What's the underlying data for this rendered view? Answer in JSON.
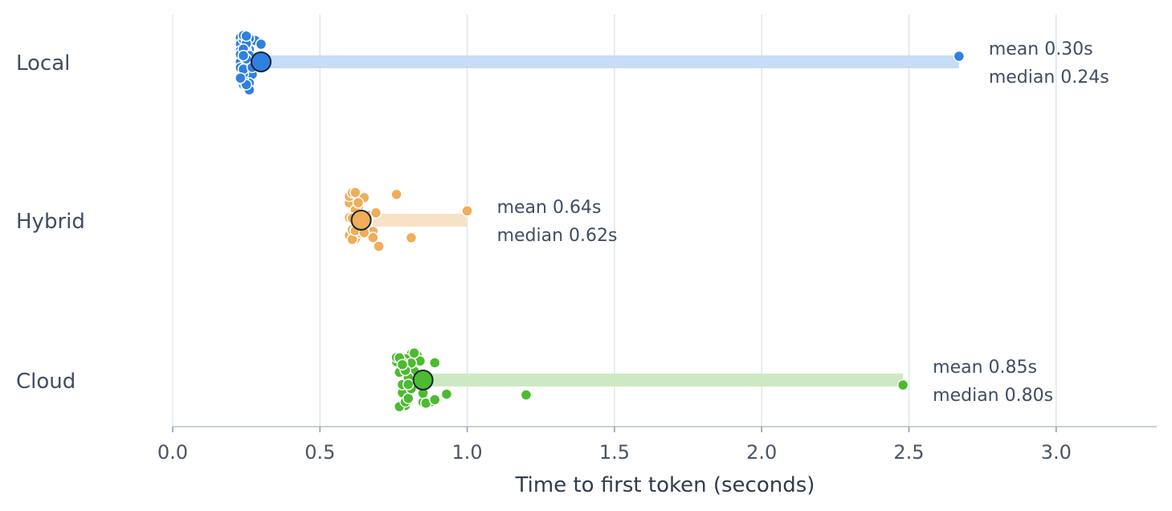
{
  "chart_data": {
    "type": "scatter",
    "xlabel": "Time to first token (seconds)",
    "xlim": [
      0,
      3.33
    ],
    "xticks": [
      0.0,
      0.5,
      1.0,
      1.5,
      2.0,
      2.5,
      3.0
    ],
    "xtick_labels": [
      "0.0",
      "0.5",
      "1.0",
      "1.5",
      "2.0",
      "2.5",
      "3.0"
    ],
    "grid": "vertical",
    "series": [
      {
        "name": "Local",
        "color": "#2f80e0",
        "bar_color": "#c7dcf5",
        "mean": 0.3,
        "median": 0.24,
        "max": 2.67,
        "mean_label": "mean 0.30s",
        "median_label": "median 0.24s",
        "points": [
          0.24,
          0.25,
          0.23,
          0.26,
          0.24,
          0.27,
          0.25,
          0.23,
          0.24,
          0.26,
          0.28,
          0.25,
          0.24,
          0.23,
          0.25,
          0.26,
          0.24,
          0.27,
          0.23,
          0.25,
          0.24,
          0.26,
          0.25,
          0.24,
          0.28,
          0.3,
          0.27,
          0.25,
          0.24,
          0.23,
          0.26,
          0.25,
          0.24,
          0.25,
          0.26,
          0.23,
          0.24,
          0.27,
          0.25,
          0.24,
          0.26,
          0.25,
          0.24,
          0.23,
          2.67
        ]
      },
      {
        "name": "Hybrid",
        "color": "#f0ad5a",
        "bar_color": "#f8e2c6",
        "mean": 0.64,
        "median": 0.62,
        "max": 1.0,
        "mean_label": "mean 0.64s",
        "median_label": "median 0.62s",
        "points": [
          0.6,
          0.62,
          0.64,
          0.61,
          0.63,
          0.65,
          0.6,
          0.62,
          0.66,
          0.61,
          0.63,
          0.67,
          0.62,
          0.64,
          0.6,
          0.65,
          0.61,
          0.63,
          0.68,
          0.62,
          0.6,
          0.64,
          0.66,
          0.61,
          0.63,
          0.62,
          0.65,
          0.6,
          0.64,
          0.7,
          0.69,
          0.76,
          0.81,
          0.68,
          0.62,
          0.61,
          0.63,
          0.65,
          1.0
        ]
      },
      {
        "name": "Cloud",
        "color": "#4cbb2f",
        "bar_color": "#cde9c3",
        "mean": 0.85,
        "median": 0.8,
        "max": 2.48,
        "mean_label": "mean 0.85s",
        "median_label": "median 0.80s",
        "points": [
          0.77,
          0.79,
          0.81,
          0.78,
          0.8,
          0.83,
          0.76,
          0.79,
          0.82,
          0.78,
          0.8,
          0.85,
          0.77,
          0.81,
          0.79,
          0.84,
          0.78,
          0.8,
          0.76,
          0.82,
          0.79,
          0.81,
          0.85,
          0.89,
          0.88,
          0.78,
          0.8,
          0.83,
          0.77,
          0.79,
          0.81,
          0.86,
          0.78,
          0.8,
          0.82,
          0.84,
          0.93,
          0.89,
          1.2,
          2.48
        ]
      }
    ]
  }
}
